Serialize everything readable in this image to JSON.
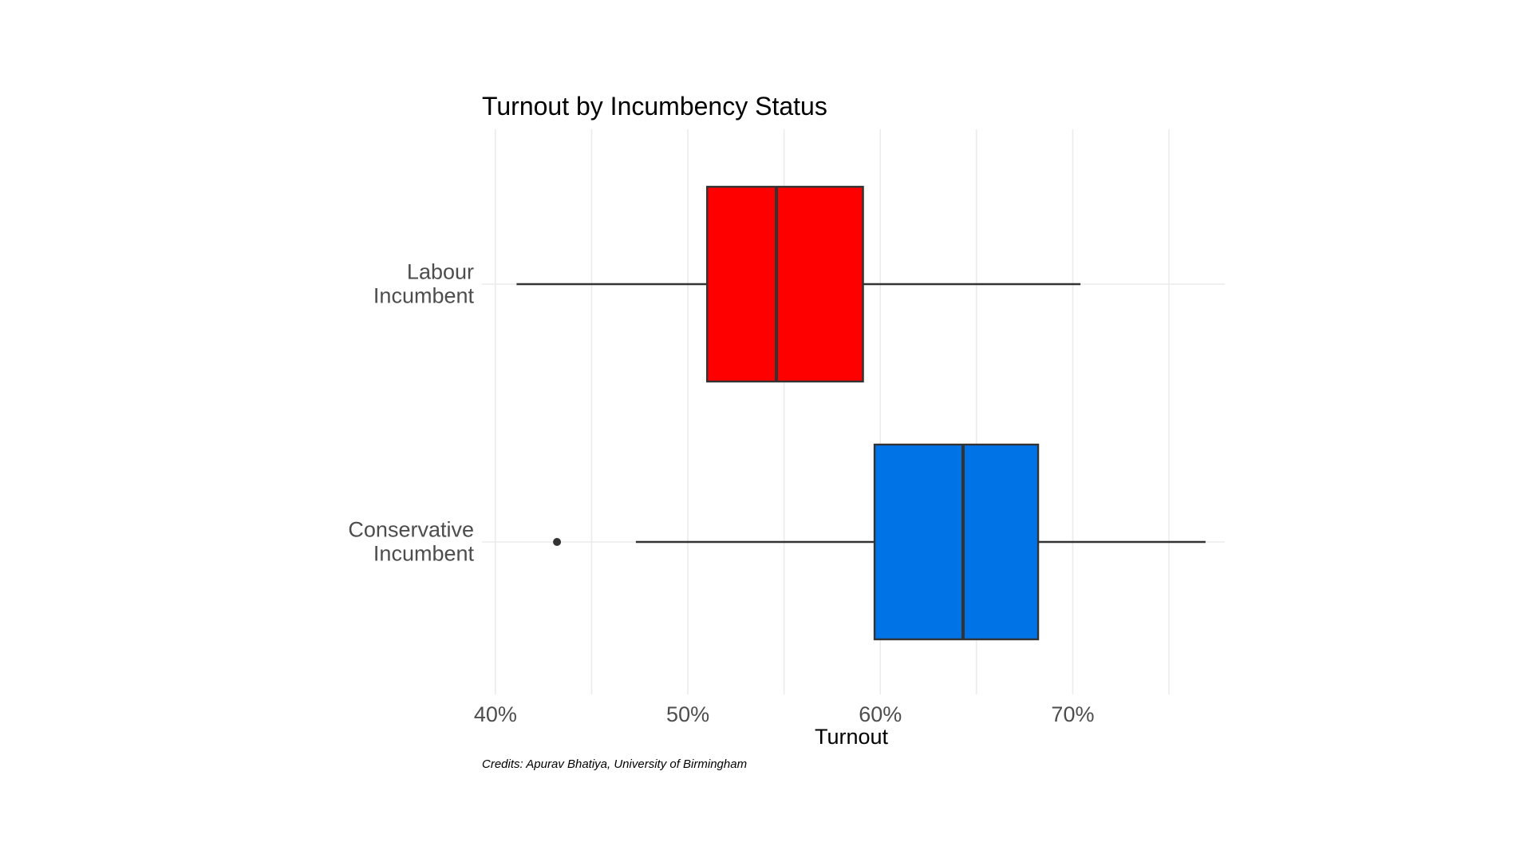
{
  "chart_data": {
    "type": "boxplot",
    "orientation": "horizontal",
    "title": "Turnout by Incumbency Status",
    "xlabel": "Turnout",
    "ylabel": "",
    "caption": "Credits: Apurav Bhatiya, University of Birmingham",
    "xlim": [
      39.3,
      77.9
    ],
    "x_ticks": [
      40,
      50,
      60,
      70
    ],
    "x_tick_labels": [
      "40%",
      "50%",
      "60%",
      "70%"
    ],
    "x_minor_ticks": [
      45,
      55,
      65,
      75
    ],
    "grid": true,
    "legend": "none",
    "categories": [
      {
        "lines": [
          "Labour",
          "Incumbent"
        ],
        "color": "#FF0000",
        "whisker_low": 41.1,
        "q1": 51.0,
        "median": 54.6,
        "q3": 59.1,
        "whisker_high": 70.4,
        "outliers": []
      },
      {
        "lines": [
          "Conservative",
          "Incumbent"
        ],
        "color": "#0073E6",
        "whisker_low": 47.3,
        "q1": 59.7,
        "median": 64.3,
        "q3": 68.2,
        "whisker_high": 76.9,
        "outliers": [
          43.2
        ]
      }
    ]
  }
}
